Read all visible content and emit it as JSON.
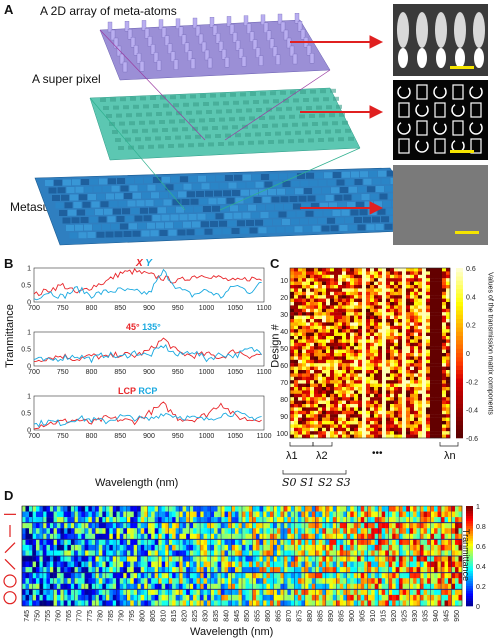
{
  "panel_a": {
    "letter": "A",
    "labels": {
      "top": "A 2D array of meta-atoms",
      "middle": "A super pixel",
      "bottom": "Metasurface encoder"
    }
  },
  "panel_b": {
    "letter": "B",
    "ylabel": "Tranmittance",
    "xlabel": "Wavelength (nm)",
    "subplots": [
      {
        "legend_a": "X",
        "legend_b": "Y"
      },
      {
        "legend_a": "45°",
        "legend_b": "135°"
      },
      {
        "legend_a": "LCP",
        "legend_b": "RCP"
      }
    ],
    "colors": {
      "a": "#e8262a",
      "b": "#19a9e0"
    }
  },
  "panel_c": {
    "letter": "C",
    "ylabel": "Design #",
    "colorbar_label": "Values of the transmission matrix components",
    "lambda_labels": [
      "λ1",
      "λ2",
      "λn"
    ],
    "ellipsis": "•••",
    "stokes": "S0 S1 S2 S3"
  },
  "panel_d": {
    "letter": "D",
    "xlabel": "Wavelength (nm)",
    "colorbar_label": "Tranmittance"
  },
  "chart_data": [
    {
      "type": "line",
      "panel": "B1",
      "xlim": [
        700,
        1100
      ],
      "ylim": [
        0,
        1
      ],
      "x_ticks": [
        700,
        750,
        800,
        850,
        900,
        950,
        1000,
        1050,
        1100
      ],
      "y_ticks": [
        0,
        0.5,
        1
      ],
      "x": [
        700,
        725,
        750,
        775,
        800,
        825,
        850,
        875,
        900,
        925,
        950,
        975,
        1000,
        1025,
        1050,
        1075,
        1100
      ],
      "series": [
        {
          "name": "X",
          "values": [
            0.2,
            0.35,
            0.5,
            0.25,
            0.45,
            0.6,
            0.85,
            0.9,
            0.8,
            0.7,
            0.6,
            0.75,
            0.8,
            0.7,
            0.6,
            0.7,
            0.65
          ]
        },
        {
          "name": "Y",
          "values": [
            0.1,
            0.3,
            0.15,
            0.4,
            0.2,
            0.3,
            0.35,
            0.3,
            0.25,
            0.9,
            0.4,
            0.2,
            0.35,
            0.15,
            0.5,
            0.3,
            0.6
          ]
        }
      ]
    },
    {
      "type": "line",
      "panel": "B2",
      "xlim": [
        700,
        1100
      ],
      "ylim": [
        0,
        1
      ],
      "x_ticks": [
        700,
        750,
        800,
        850,
        900,
        950,
        1000,
        1050,
        1100
      ],
      "y_ticks": [
        0,
        0.5,
        1
      ],
      "x": [
        700,
        725,
        750,
        775,
        800,
        825,
        850,
        875,
        900,
        925,
        950,
        975,
        1000,
        1025,
        1050,
        1075,
        1100
      ],
      "series": [
        {
          "name": "45°",
          "values": [
            0.15,
            0.25,
            0.3,
            0.2,
            0.3,
            0.25,
            0.35,
            0.3,
            0.45,
            0.8,
            0.4,
            0.3,
            0.35,
            0.25,
            0.45,
            0.3,
            0.35
          ]
        },
        {
          "name": "135°",
          "values": [
            0.2,
            0.15,
            0.25,
            0.3,
            0.2,
            0.35,
            0.25,
            0.4,
            0.3,
            0.6,
            0.3,
            0.45,
            0.2,
            0.35,
            0.3,
            0.5,
            0.4
          ]
        }
      ]
    },
    {
      "type": "line",
      "panel": "B3",
      "xlim": [
        700,
        1100
      ],
      "ylim": [
        0,
        1
      ],
      "x_ticks": [
        700,
        750,
        800,
        850,
        900,
        950,
        1000,
        1050,
        1100
      ],
      "y_ticks": [
        0,
        0.5,
        1
      ],
      "x": [
        700,
        725,
        750,
        775,
        800,
        825,
        850,
        875,
        900,
        925,
        950,
        975,
        1000,
        1025,
        1050,
        1075,
        1100
      ],
      "series": [
        {
          "name": "LCP",
          "values": [
            0.1,
            0.2,
            0.25,
            0.3,
            0.2,
            0.35,
            0.3,
            0.25,
            0.5,
            0.75,
            0.35,
            0.3,
            0.45,
            0.8,
            0.4,
            0.3,
            0.35
          ]
        },
        {
          "name": "RCP",
          "values": [
            0.15,
            0.25,
            0.2,
            0.35,
            0.3,
            0.25,
            0.4,
            0.35,
            0.3,
            0.5,
            0.4,
            0.35,
            0.3,
            0.45,
            0.5,
            0.35,
            0.4
          ]
        }
      ]
    },
    {
      "type": "heatmap",
      "panel": "C",
      "y_ticks": [
        10,
        20,
        30,
        40,
        50,
        60,
        70,
        80,
        90,
        100
      ],
      "colorbar_ticks": [
        0.6,
        0.4,
        0.2,
        0,
        -0.2,
        -0.4,
        -0.6
      ],
      "range": [
        -0.6,
        0.6
      ]
    },
    {
      "type": "heatmap",
      "panel": "D",
      "x_ticks": [
        745,
        750,
        755,
        760,
        765,
        770,
        775,
        780,
        785,
        790,
        795,
        800,
        805,
        810,
        815,
        820,
        825,
        830,
        835,
        840,
        845,
        850,
        855,
        860,
        865,
        870,
        875,
        880,
        885,
        890,
        895,
        900,
        905,
        910,
        915,
        920,
        925,
        930,
        935,
        940,
        945,
        950
      ],
      "colorbar_ticks": [
        1,
        0.8,
        0.6,
        0.4,
        0.2,
        0
      ],
      "range": [
        0,
        1
      ]
    }
  ]
}
